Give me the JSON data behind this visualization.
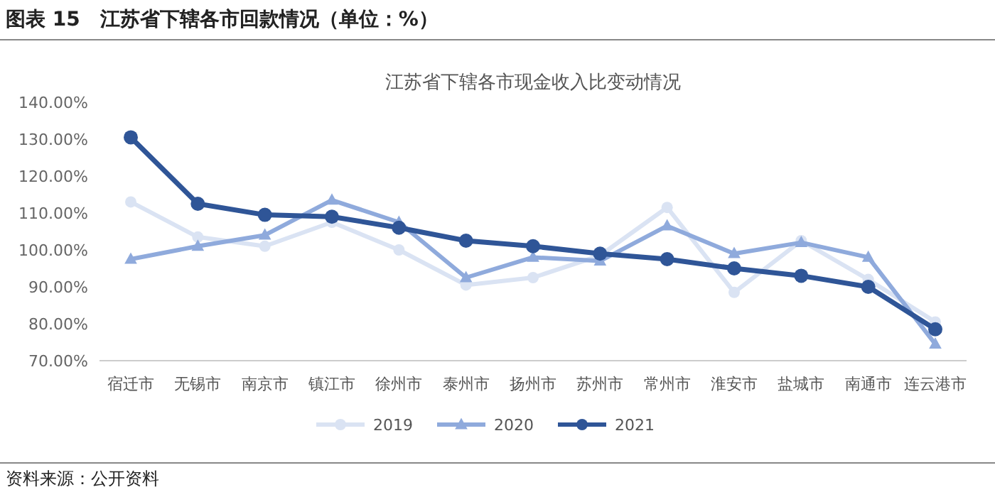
{
  "chart_data": {
    "type": "line",
    "title": "图表 15　江苏省下辖各市回款情况（单位：%）",
    "subtitle": "江苏省下辖各市现金收入比变动情况",
    "categories": [
      "宿迁市",
      "无锡市",
      "南京市",
      "镇江市",
      "徐州市",
      "泰州市",
      "扬州市",
      "苏州市",
      "常州市",
      "淮安市",
      "盐城市",
      "南通市",
      "连云港市"
    ],
    "series": [
      {
        "name": "2019",
        "color": "#dae3f3",
        "marker": "circle",
        "values": [
          113,
          103.5,
          101,
          107.5,
          100,
          90.5,
          92.5,
          98.5,
          111.5,
          88.5,
          102.5,
          92,
          80.5
        ]
      },
      {
        "name": "2020",
        "color": "#8faadc",
        "marker": "triangle",
        "values": [
          97.5,
          101,
          104,
          113.5,
          107.5,
          92.5,
          98,
          97,
          106.5,
          99,
          102,
          98,
          74.5
        ]
      },
      {
        "name": "2021",
        "color": "#2f5597",
        "marker": "circle",
        "values": [
          130.5,
          112.5,
          109.5,
          109,
          106,
          102.5,
          101,
          99,
          97.5,
          95,
          93,
          90,
          78.5
        ]
      }
    ],
    "ylim": [
      70,
      140
    ],
    "yticks": [
      {
        "value": 70,
        "label": "70.00%"
      },
      {
        "value": 80,
        "label": "80.00%"
      },
      {
        "value": 90,
        "label": "90.00%"
      },
      {
        "value": 100,
        "label": "100.00%"
      },
      {
        "value": 110,
        "label": "110.00%"
      },
      {
        "value": 120,
        "label": "120.00%"
      },
      {
        "value": 130,
        "label": "130.00%"
      },
      {
        "value": 140,
        "label": "140.00%"
      }
    ],
    "grid": false,
    "legend": "bottom",
    "line_style": "solid",
    "annotations": [
      "资料来源：公开资料"
    ]
  }
}
